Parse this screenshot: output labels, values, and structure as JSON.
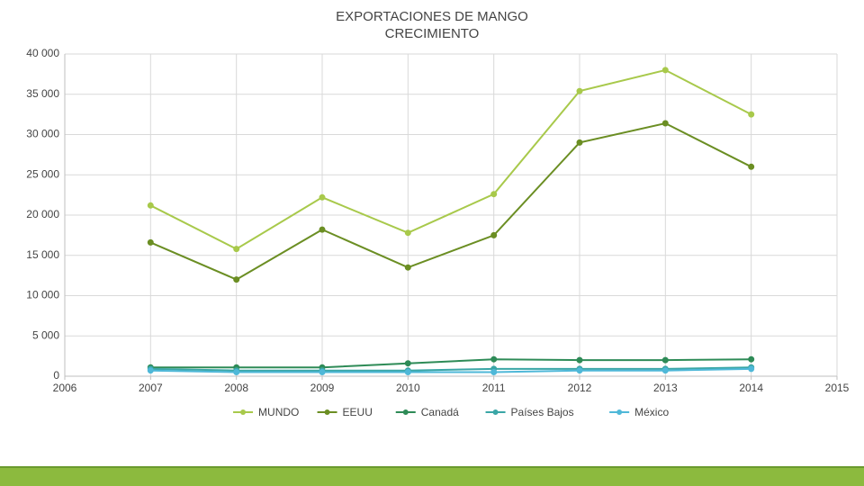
{
  "title_line1": "EXPORTACIONES DE MANGO",
  "title_line2": "CRECIMIENTO",
  "chart": {
    "type": "line",
    "background_color": "#ffffff",
    "grid_color": "#d9d9d9",
    "axis_color": "#bfbfbf",
    "title_fontsize": 15,
    "tick_fontsize": 12,
    "legend_fontsize": 12,
    "xlim": [
      2006,
      2015
    ],
    "x_categories": [
      2006,
      2007,
      2008,
      2009,
      2010,
      2011,
      2012,
      2013,
      2014,
      2015
    ],
    "ylim": [
      0,
      40000
    ],
    "ytick_step": 5000,
    "ytick_labels": [
      "0",
      "5 000",
      "10 000",
      "15 000",
      "20 000",
      "25 000",
      "30 000",
      "35 000",
      "40 000"
    ],
    "marker_radius": 3,
    "line_width": 2,
    "series": [
      {
        "name": "MUNDO",
        "color": "#a8c94b",
        "x": [
          2007,
          2008,
          2009,
          2010,
          2011,
          2012,
          2013,
          2014
        ],
        "y": [
          21200,
          15800,
          22200,
          17800,
          22600,
          35400,
          38000,
          32500
        ]
      },
      {
        "name": "EEUU",
        "color": "#6b8e23",
        "x": [
          2007,
          2008,
          2009,
          2010,
          2011,
          2012,
          2013,
          2014
        ],
        "y": [
          16600,
          12000,
          18200,
          13500,
          17500,
          29000,
          31400,
          26000
        ]
      },
      {
        "name": "Canadá",
        "color": "#2e8b57",
        "x": [
          2007,
          2008,
          2009,
          2010,
          2011,
          2012,
          2013,
          2014
        ],
        "y": [
          1100,
          1100,
          1100,
          1600,
          2100,
          2000,
          2000,
          2100
        ]
      },
      {
        "name": "Países Bajos",
        "color": "#3aa6a6",
        "x": [
          2007,
          2008,
          2009,
          2010,
          2011,
          2012,
          2013,
          2014
        ],
        "y": [
          900,
          700,
          700,
          700,
          900,
          900,
          900,
          1100
        ]
      },
      {
        "name": "México",
        "color": "#4fb8d8",
        "x": [
          2007,
          2008,
          2009,
          2010,
          2011,
          2012,
          2013,
          2014
        ],
        "y": [
          700,
          500,
          500,
          500,
          500,
          700,
          700,
          900
        ]
      }
    ],
    "legend_position": "bottom"
  },
  "footer_bar_color": "#8cba3e"
}
